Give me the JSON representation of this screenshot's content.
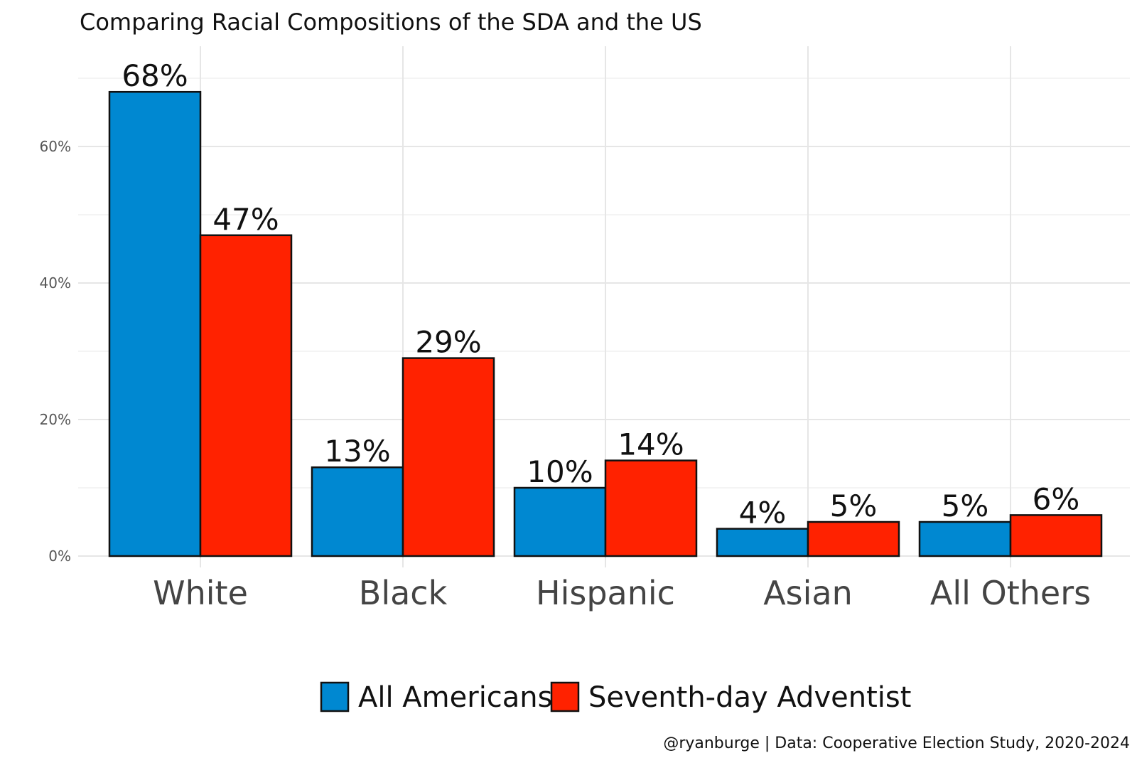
{
  "chart_data": {
    "type": "bar",
    "title": "Comparing Racial Compositions of the SDA and the US",
    "xlabel": "",
    "ylabel": "",
    "categories": [
      "White",
      "Black",
      "Hispanic",
      "Asian",
      "All Others"
    ],
    "series": [
      {
        "name": "All Americans",
        "color": "#0088d1",
        "values": [
          68,
          13,
          10,
          4,
          5
        ],
        "labels": [
          "68%",
          "13%",
          "10%",
          "4%",
          "5%"
        ]
      },
      {
        "name": "Seventh-day Adventist",
        "color": "#ff2200",
        "values": [
          47,
          29,
          14,
          5,
          6
        ],
        "labels": [
          "47%",
          "29%",
          "14%",
          "5%",
          "6%"
        ]
      }
    ],
    "ylim": [
      0,
      70
    ],
    "yticks": [
      0,
      20,
      40,
      60
    ],
    "ytick_labels": [
      "0%",
      "20%",
      "40%",
      "60%"
    ],
    "grid": true,
    "legend_position": "bottom",
    "caption": "@ryanburge | Data: Cooperative Election Study, 2020-2024"
  }
}
